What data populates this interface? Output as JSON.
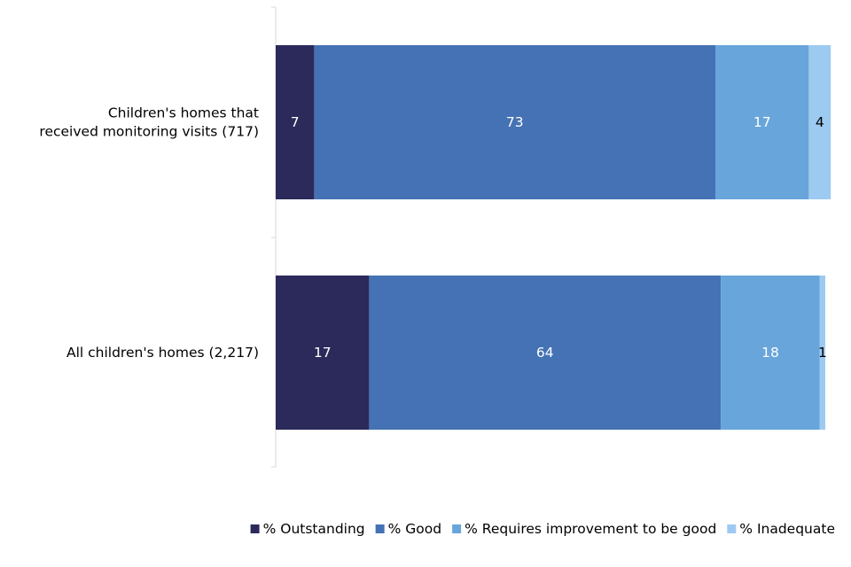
{
  "chart_data": {
    "type": "bar",
    "orientation": "horizontal",
    "stacked": true,
    "categories": [
      [
        "Children's homes that",
        "received monitoring visits (717)"
      ],
      [
        "All children's homes (2,217)"
      ]
    ],
    "series": [
      {
        "name": "% Outstanding",
        "values": [
          7,
          17
        ],
        "color": "#2b2a5b"
      },
      {
        "name": "% Good",
        "values": [
          73,
          64
        ],
        "color": "#4472b4"
      },
      {
        "name": "% Requires improvement to be good",
        "values": [
          17,
          18
        ],
        "color": "#68a5db"
      },
      {
        "name": "% Inadequate",
        "values": [
          4,
          1
        ],
        "color": "#9dcaf1"
      }
    ],
    "label_colors": [
      "#ffffff",
      "#ffffff",
      "#ffffff",
      "#000000"
    ],
    "xlim": [
      0,
      100
    ],
    "title": "",
    "xlabel": "",
    "ylabel": "",
    "grid": false,
    "legend_position": "bottom-right"
  }
}
